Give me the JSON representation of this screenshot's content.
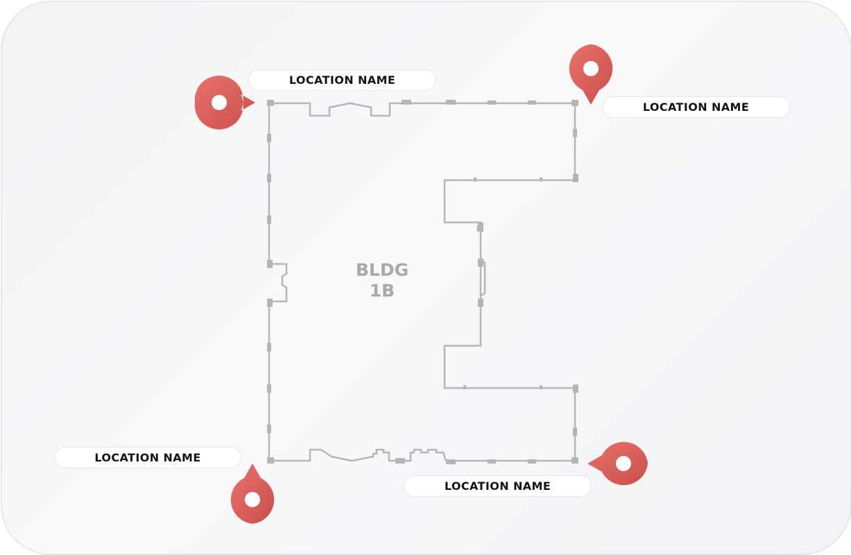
{
  "building": {
    "name_line1": "BLDG",
    "name_line2": "1B"
  },
  "locations": [
    {
      "id": "top-left",
      "name": "LOCATION NAME"
    },
    {
      "id": "top-right",
      "name": "LOCATION NAME"
    },
    {
      "id": "bottom-left",
      "name": "LOCATION NAME"
    },
    {
      "id": "bottom-right",
      "name": "LOCATION NAME"
    }
  ],
  "icons": {
    "pin": "map-pin-icon"
  },
  "colors": {
    "pin": "#e06560",
    "pin_shadow": "#c94f4b",
    "wall": "#b5b5b7",
    "label_text": "#141414",
    "building_text": "#a9a9ab"
  }
}
